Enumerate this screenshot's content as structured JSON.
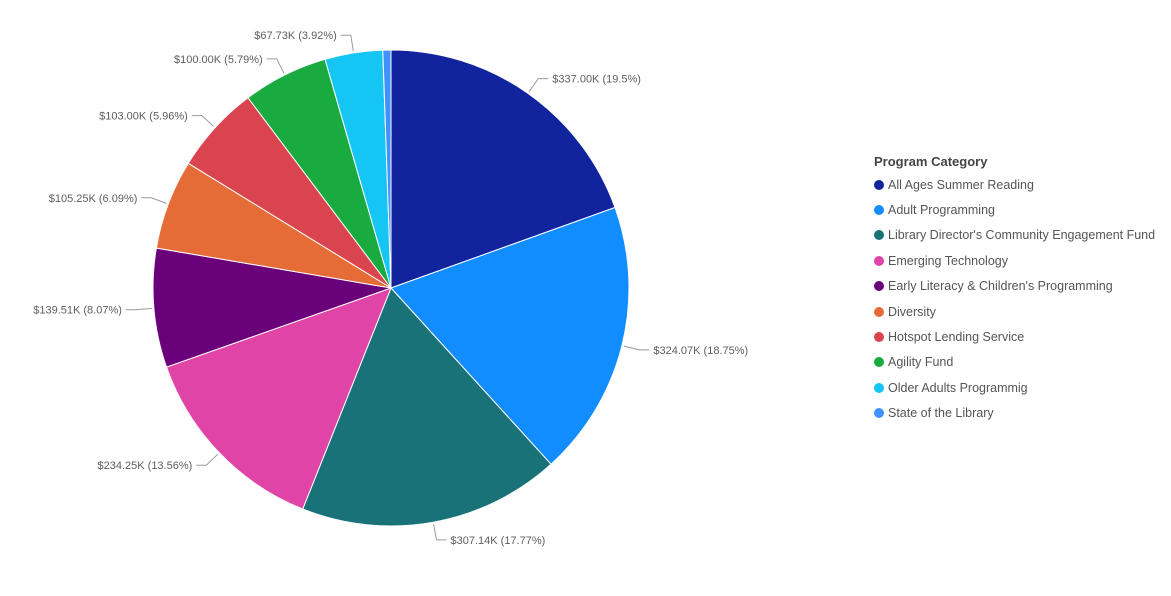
{
  "chart_data": {
    "type": "pie",
    "legend_title": "Program Category",
    "legend_position": "right",
    "series": [
      {
        "name": "All Ages Summer Reading",
        "value": 337.0,
        "percent": 19.5,
        "label": "$337.00K (19.5%)",
        "color": "#12239E"
      },
      {
        "name": "Adult Programming",
        "value": 324.07,
        "percent": 18.75,
        "label": "$324.07K (18.75%)",
        "color": "#118DFF"
      },
      {
        "name": "Library Director's Community Engagement Fund",
        "value": 307.14,
        "percent": 17.77,
        "label": "$307.14K (17.77%)",
        "color": "#1A7279"
      },
      {
        "name": "Emerging Technology",
        "value": 234.25,
        "percent": 13.56,
        "label": "$234.25K (13.56%)",
        "color": "#E044A7"
      },
      {
        "name": "Early Literacy & Children's Programming",
        "value": 139.51,
        "percent": 8.07,
        "label": "$139.51K (8.07%)",
        "color": "#6B007B"
      },
      {
        "name": "Diversity",
        "value": 105.25,
        "percent": 6.09,
        "label": "$105.25K (6.09%)",
        "color": "#E66C37"
      },
      {
        "name": "Hotspot Lending Service",
        "value": 103.0,
        "percent": 5.96,
        "label": "$103.00K (5.96%)",
        "color": "#D9444F"
      },
      {
        "name": "Agility Fund",
        "value": 100.0,
        "percent": 5.79,
        "label": "$100.00K (5.79%)",
        "color": "#1AAB40"
      },
      {
        "name": "Older Adults Programmig",
        "value": 67.73,
        "percent": 3.92,
        "label": "$67.73K (3.92%)",
        "color": "#15C6F4"
      },
      {
        "name": "State of the Library",
        "value": 9.5,
        "percent": 0.55,
        "label": "",
        "color": "#4092FF"
      }
    ]
  }
}
